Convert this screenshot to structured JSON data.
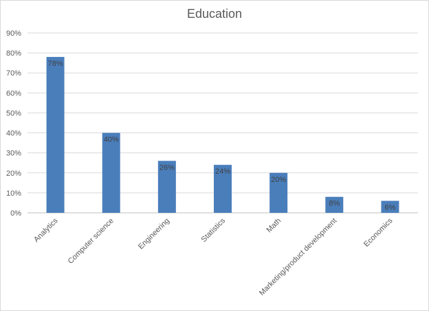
{
  "chart_data": {
    "type": "bar",
    "title": "Education",
    "xlabel": "",
    "ylabel": "",
    "categories": [
      "Analytics",
      "Computer science",
      "Engineering",
      "Statistics",
      "Math",
      "Marketing/product development",
      "Economics"
    ],
    "values": [
      78,
      40,
      26,
      24,
      20,
      8,
      6
    ],
    "data_labels": [
      "78%",
      "40%",
      "26%",
      "24%",
      "20%",
      "8%",
      "6%"
    ],
    "y_ticks": [
      "0%",
      "10%",
      "20%",
      "30%",
      "40%",
      "50%",
      "60%",
      "70%",
      "80%",
      "90%"
    ],
    "ylim": [
      0,
      90
    ],
    "grid": true,
    "legend": "none",
    "bar_color": "#4a7ebb"
  }
}
